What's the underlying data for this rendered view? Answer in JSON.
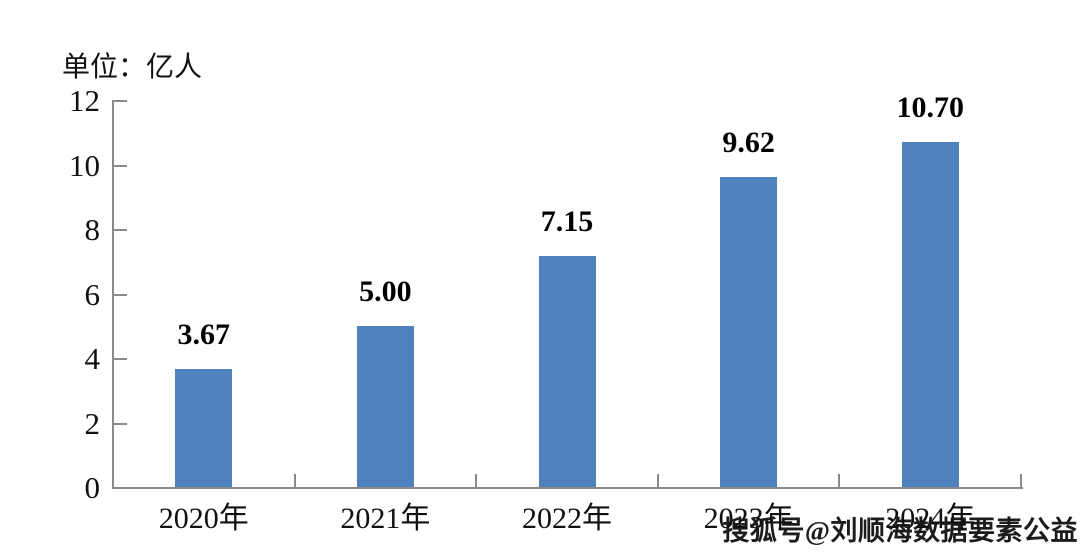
{
  "unit_label": "单位：亿人",
  "watermark": "搜狐号@刘顺海数据要素公益",
  "chart_data": {
    "type": "bar",
    "title": "",
    "unit": "单位：亿人",
    "categories": [
      "2020年",
      "2021年",
      "2022年",
      "2023年",
      "2024年"
    ],
    "values": [
      3.67,
      5.0,
      7.15,
      9.62,
      10.7
    ],
    "value_labels": [
      "3.67",
      "5.00",
      "7.15",
      "9.62",
      "10.70"
    ],
    "xlabel": "",
    "ylabel": "",
    "ylim": [
      0,
      12
    ],
    "yticks": [
      0,
      2,
      4,
      6,
      8,
      10,
      12
    ],
    "grid": false,
    "legend": "none",
    "bar_color": "#4f81bd",
    "axis_color": "#8a8a8a",
    "label_color": "#111111"
  }
}
